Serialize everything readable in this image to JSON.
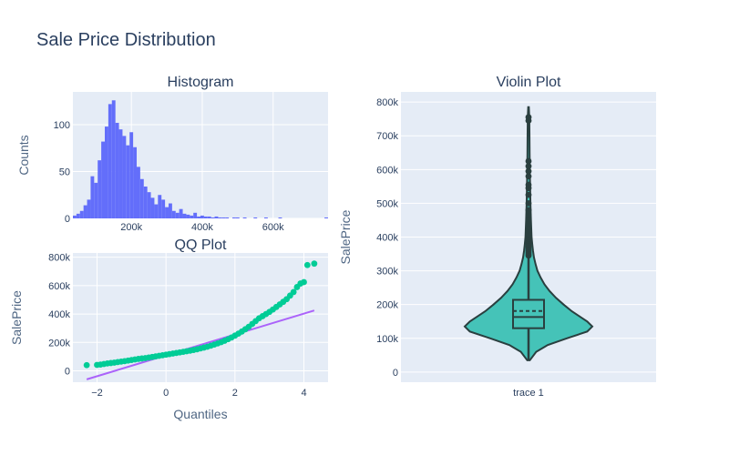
{
  "title": "Sale Price Distribution",
  "colors": {
    "histogram": "#636efa",
    "qq_points": "#00cc96",
    "qq_line": "#ab63fa",
    "violin_fill": "#45c3b8",
    "violin_line": "#2a3f3f",
    "plot_bg": "#e5ecf6"
  },
  "chart_data": [
    {
      "type": "bar",
      "subtype": "histogram",
      "title": "Histogram",
      "xlabel": "",
      "ylabel": "Counts",
      "xlim": [
        34900,
        755000
      ],
      "ylim": [
        0,
        135
      ],
      "xticks": [
        200000,
        400000,
        600000
      ],
      "xtick_labels": [
        "200k",
        "400k",
        "600k"
      ],
      "yticks": [
        0,
        50,
        100
      ],
      "ytick_labels": [
        "0",
        "50",
        "100"
      ],
      "bin_start": 34900,
      "bin_width": 10000,
      "counts": [
        3,
        5,
        8,
        14,
        20,
        45,
        38,
        62,
        82,
        98,
        122,
        126,
        102,
        95,
        88,
        78,
        92,
        76,
        55,
        42,
        34,
        28,
        22,
        15,
        25,
        20,
        12,
        16,
        8,
        6,
        10,
        5,
        4,
        3,
        6,
        2,
        3,
        2,
        2,
        1,
        2,
        1,
        1,
        1,
        0,
        1,
        1,
        0,
        1,
        0,
        0,
        1,
        0,
        0,
        1,
        0,
        0,
        0,
        1,
        0,
        0,
        0,
        0,
        0,
        0,
        0,
        0,
        0,
        0,
        0,
        0,
        1
      ]
    },
    {
      "type": "scatter",
      "subtype": "qq",
      "title": "QQ Plot",
      "xlabel": "Quantiles",
      "ylabel": "SalePrice",
      "xlim": [
        -2.7,
        4.7
      ],
      "ylim": [
        -80000,
        830000
      ],
      "xticks": [
        -2,
        0,
        2,
        4
      ],
      "xtick_labels": [
        "−2",
        "0",
        "2",
        "4"
      ],
      "yticks": [
        0,
        200000,
        400000,
        600000,
        800000
      ],
      "ytick_labels": [
        "0",
        "200k",
        "400k",
        "600k",
        "800k"
      ],
      "points": [
        [
          -2.3,
          40000
        ],
        [
          -2.0,
          42000
        ],
        [
          -1.9,
          44000
        ],
        [
          -1.8,
          48000
        ],
        [
          -1.7,
          52000
        ],
        [
          -1.6,
          55000
        ],
        [
          -1.5,
          58000
        ],
        [
          -1.4,
          62000
        ],
        [
          -1.3,
          65000
        ],
        [
          -1.2,
          68000
        ],
        [
          -1.1,
          72000
        ],
        [
          -1.0,
          76000
        ],
        [
          -0.9,
          80000
        ],
        [
          -0.8,
          84000
        ],
        [
          -0.7,
          87000
        ],
        [
          -0.6,
          90000
        ],
        [
          -0.5,
          94000
        ],
        [
          -0.4,
          98000
        ],
        [
          -0.3,
          102000
        ],
        [
          -0.2,
          106000
        ],
        [
          -0.1,
          110000
        ],
        [
          0.0,
          114000
        ],
        [
          0.1,
          118000
        ],
        [
          0.2,
          122000
        ],
        [
          0.3,
          126000
        ],
        [
          0.4,
          130000
        ],
        [
          0.5,
          134000
        ],
        [
          0.6,
          138000
        ],
        [
          0.7,
          142000
        ],
        [
          0.8,
          147000
        ],
        [
          0.9,
          152000
        ],
        [
          1.0,
          158000
        ],
        [
          1.1,
          164000
        ],
        [
          1.2,
          170000
        ],
        [
          1.3,
          177000
        ],
        [
          1.4,
          185000
        ],
        [
          1.5,
          193000
        ],
        [
          1.6,
          202000
        ],
        [
          1.7,
          212000
        ],
        [
          1.8,
          223000
        ],
        [
          1.9,
          235000
        ],
        [
          2.0,
          248000
        ],
        [
          2.1,
          262000
        ],
        [
          2.2,
          277000
        ],
        [
          2.3,
          293000
        ],
        [
          2.4,
          310000
        ],
        [
          2.5,
          330000
        ],
        [
          2.6,
          350000
        ],
        [
          2.7,
          370000
        ],
        [
          2.8,
          385000
        ],
        [
          2.9,
          400000
        ],
        [
          3.0,
          415000
        ],
        [
          3.1,
          432000
        ],
        [
          3.2,
          450000
        ],
        [
          3.3,
          468000
        ],
        [
          3.4,
          486000
        ],
        [
          3.5,
          505000
        ],
        [
          3.6,
          530000
        ],
        [
          3.7,
          555000
        ],
        [
          3.8,
          590000
        ],
        [
          3.9,
          615000
        ],
        [
          4.0,
          625000
        ],
        [
          4.1,
          745000
        ],
        [
          4.3,
          755000
        ]
      ],
      "line": {
        "x": [
          -2.3,
          4.3
        ],
        "y": [
          -60000,
          425000
        ]
      }
    },
    {
      "type": "violin",
      "title": "Violin Plot",
      "xlabel": "",
      "ylabel": "SalePrice",
      "category": "trace 1",
      "ylim": [
        -30000,
        830000
      ],
      "yticks": [
        0,
        100000,
        200000,
        300000,
        400000,
        500000,
        600000,
        700000,
        800000
      ],
      "ytick_labels": [
        "0",
        "100k",
        "200k",
        "300k",
        "400k",
        "500k",
        "600k",
        "700k",
        "800k"
      ],
      "kde": [
        [
          34900,
          0.02
        ],
        [
          60000,
          0.12
        ],
        [
          80000,
          0.3
        ],
        [
          100000,
          0.6
        ],
        [
          120000,
          0.92
        ],
        [
          135000,
          1.0
        ],
        [
          150000,
          0.92
        ],
        [
          165000,
          0.8
        ],
        [
          180000,
          0.68
        ],
        [
          200000,
          0.55
        ],
        [
          220000,
          0.43
        ],
        [
          240000,
          0.33
        ],
        [
          260000,
          0.25
        ],
        [
          280000,
          0.19
        ],
        [
          300000,
          0.14
        ],
        [
          320000,
          0.11
        ],
        [
          340000,
          0.085
        ],
        [
          360000,
          0.07
        ],
        [
          380000,
          0.058
        ],
        [
          400000,
          0.048
        ],
        [
          450000,
          0.038
        ],
        [
          500000,
          0.03
        ],
        [
          550000,
          0.025
        ],
        [
          600000,
          0.02
        ],
        [
          650000,
          0.017
        ],
        [
          700000,
          0.015
        ],
        [
          755000,
          0.012
        ],
        [
          785000,
          0.005
        ]
      ],
      "box": {
        "q1": 129975,
        "median": 163000,
        "mean": 180921,
        "q3": 214000,
        "whisker_low": 34900,
        "whisker_high": 340000
      },
      "outliers": [
        345000,
        350000,
        355000,
        360000,
        365000,
        370000,
        375000,
        380000,
        385000,
        390000,
        395000,
        400000,
        410000,
        420000,
        430000,
        440000,
        450000,
        465000,
        480000,
        500000,
        525000,
        545000,
        555000,
        580000,
        595000,
        610000,
        625000,
        745000,
        755000
      ]
    }
  ]
}
